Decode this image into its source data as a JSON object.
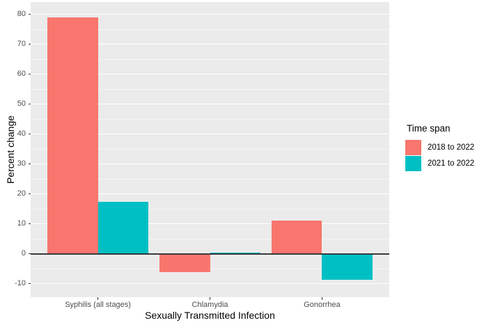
{
  "chart_data": {
    "type": "bar",
    "title": "",
    "xlabel": "Sexually Transmitted Infection",
    "ylabel": "Percent change",
    "categories": [
      "Syphilis (all stages)",
      "Chlamydia",
      "Gonorrhea"
    ],
    "series": [
      {
        "name": "2018 to 2022",
        "color": "#F8766D",
        "values": [
          78.9,
          -6.2,
          11.1
        ]
      },
      {
        "name": "2021 to 2022",
        "color": "#00BFC4",
        "values": [
          17.3,
          0.3,
          -8.7
        ]
      }
    ],
    "y_ticks": [
      -10,
      0,
      10,
      20,
      30,
      40,
      50,
      60,
      70,
      80
    ],
    "y_minor_ticks": [
      -5,
      5,
      15,
      25,
      35,
      45,
      55,
      65,
      75
    ],
    "ylim": [
      -14.5,
      84.2
    ],
    "grid": true,
    "zero_line": true,
    "legend": {
      "title": "Time span",
      "position": "right"
    },
    "colors": {
      "panel_background": "#EBEBEB",
      "gridline": "#FFFFFF",
      "axis_text": "#4D4D4D",
      "axis_title": "#000000",
      "tick_mark": "#333333",
      "zero_line": "#3A3A3A"
    }
  }
}
